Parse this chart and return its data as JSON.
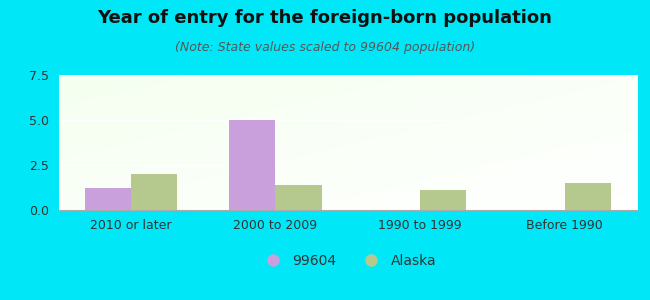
{
  "title": "Year of entry for the foreign-born population",
  "subtitle": "(Note: State values scaled to 99604 population)",
  "categories": [
    "2010 or later",
    "2000 to 2009",
    "1990 to 1999",
    "Before 1990"
  ],
  "series_99604": [
    1.2,
    5.0,
    0.0,
    0.0
  ],
  "series_alaska": [
    2.0,
    1.4,
    1.1,
    1.5
  ],
  "color_99604": "#c9a0dc",
  "color_alaska": "#b5c98e",
  "ylim": [
    0,
    7.5
  ],
  "yticks": [
    0,
    2.5,
    5,
    7.5
  ],
  "background_outer": "#00e8f8",
  "legend_label_99604": "99604",
  "legend_label_alaska": "Alaska",
  "bar_width": 0.32,
  "title_fontsize": 13,
  "subtitle_fontsize": 9,
  "tick_fontsize": 9,
  "legend_fontsize": 10
}
